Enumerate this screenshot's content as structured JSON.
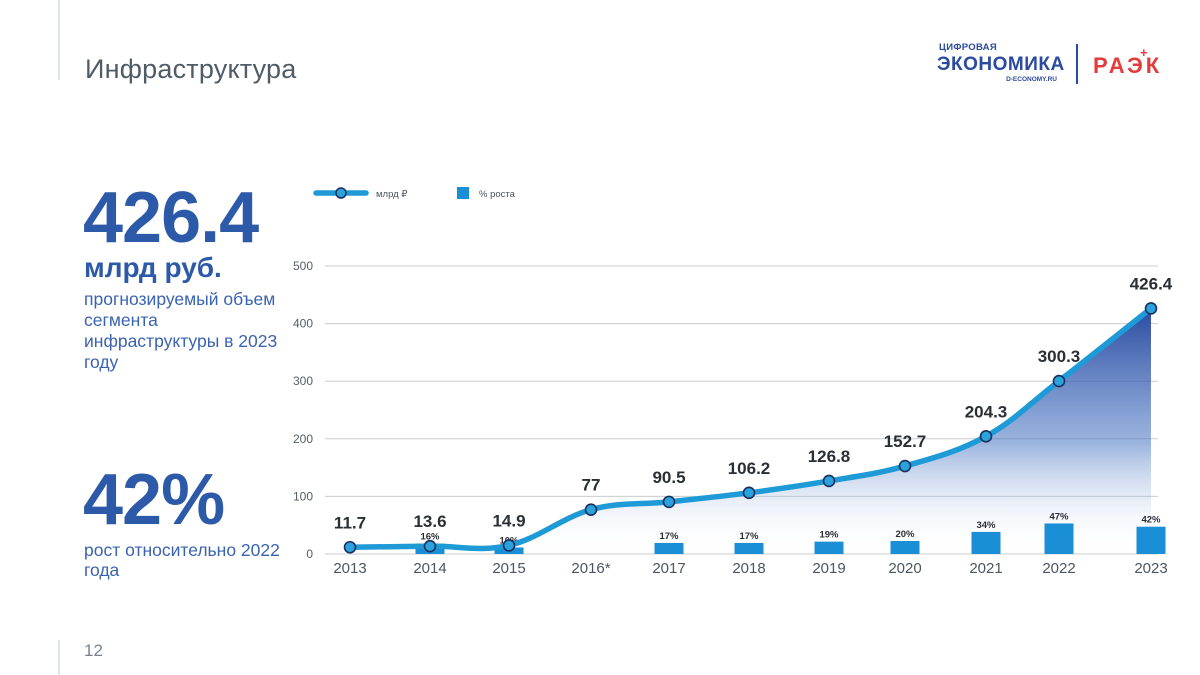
{
  "header": {
    "title": "Инфраструктура",
    "page_number": "12"
  },
  "logos": {
    "digital_economy_line1": "ЦИФРОВАЯ",
    "digital_economy_line2": "ЭКОНОМИКА",
    "digital_economy_url": "D-ECONOMY.RU",
    "raek": "РАЭК",
    "raek_plus": "+"
  },
  "highlights": {
    "volume_value": "426.4",
    "volume_unit": "млрд руб.",
    "volume_desc": "прогнозируемый объем сегмента инфраструктуры в 2023 году",
    "growth_value": "42%",
    "growth_desc": "рост относительно 2022 года"
  },
  "colors": {
    "line": "#1e9ad6",
    "area_top": "#2b4aa0",
    "bar": "#1a8fd6",
    "grid": "#c9ccd1",
    "marker_fill": "#2aa3dd",
    "marker_stroke": "#1b2f5c"
  },
  "chart_data": {
    "type": "line",
    "legend": [
      {
        "name": "млрд ₽",
        "type": "line"
      },
      {
        "name": "% роста",
        "type": "bar"
      }
    ],
    "legend_position": "top-left",
    "categories": [
      "2013",
      "2014",
      "2015",
      "2016*",
      "2017",
      "2018",
      "2019",
      "2020",
      "2021",
      "2022",
      "2023"
    ],
    "series": [
      {
        "name": "млрд ₽",
        "type": "line",
        "values": [
          11.7,
          13.6,
          14.9,
          77,
          90.5,
          106.2,
          126.8,
          152.7,
          204.3,
          300.3,
          426.4
        ],
        "labels": [
          "11.7",
          "13.6",
          "14.9",
          "77",
          "90.5",
          "106.2",
          "126.8",
          "152.7",
          "204.3",
          "300.3",
          "426.4"
        ]
      },
      {
        "name": "% роста",
        "type": "bar",
        "values": [
          null,
          16,
          10,
          null,
          17,
          17,
          19,
          20,
          34,
          47,
          42
        ],
        "labels": [
          "",
          "16%",
          "10%",
          "",
          "17%",
          "17%",
          "19%",
          "20%",
          "34%",
          "47%",
          "42%"
        ]
      }
    ],
    "y_ticks": [
      "0",
      "100",
      "200",
      "300",
      "400",
      "500"
    ],
    "ylim": [
      0,
      500
    ],
    "grid": true
  }
}
